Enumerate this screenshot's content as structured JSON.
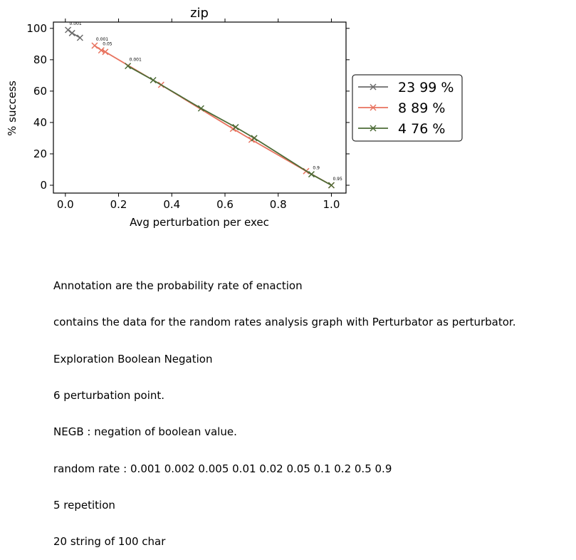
{
  "chart_data": {
    "type": "line",
    "title": "zip",
    "xlabel": "Avg perturbation per exec",
    "ylabel": "% success",
    "xlim": [
      -0.045,
      1.055
    ],
    "ylim": [
      -5,
      104
    ],
    "xticks": [
      0.0,
      0.2,
      0.4,
      0.6,
      0.8,
      1.0
    ],
    "xtick_labels": [
      "0.0",
      "0.2",
      "0.4",
      "0.6",
      "0.8",
      "1.0"
    ],
    "yticks": [
      0,
      20,
      40,
      60,
      80,
      100
    ],
    "ytick_labels": [
      "0",
      "20",
      "40",
      "60",
      "80",
      "100"
    ],
    "legend_position": "outside-right",
    "marker": "x",
    "series": [
      {
        "name": "23 99 %",
        "color": "#6b6b6b",
        "x": [
          0.01,
          0.025,
          0.055
        ],
        "y": [
          99,
          97,
          94
        ]
      },
      {
        "name": "8 89 %",
        "color": "#e8735f",
        "x": [
          0.11,
          0.135,
          0.15,
          0.36,
          0.63,
          0.7,
          0.905,
          1.0
        ],
        "y": [
          89,
          86,
          85,
          64,
          36,
          29,
          9,
          0
        ]
      },
      {
        "name": "4 76 %",
        "color": "#4d6b36",
        "x": [
          0.235,
          0.33,
          0.51,
          0.64,
          0.71,
          0.925,
          1.0
        ],
        "y": [
          76,
          67,
          49,
          37,
          30,
          7,
          0
        ]
      }
    ],
    "annotations": [
      {
        "text": "0.001",
        "x": 0.01,
        "y": 99
      },
      {
        "text": "0.001",
        "x": 0.11,
        "y": 89
      },
      {
        "text": "0.05",
        "x": 0.135,
        "y": 86
      },
      {
        "text": "0.001",
        "x": 0.235,
        "y": 76
      },
      {
        "text": "0.9",
        "x": 0.925,
        "y": 7
      },
      {
        "text": "0.95",
        "x": 1.0,
        "y": 0
      }
    ]
  },
  "caption_lines": [
    "Annotation are the probability rate of enaction",
    "contains the data for the random rates analysis graph with Perturbator as perturbator.",
    "Exploration Boolean Negation",
    "6 perturbation point.",
    "NEGB : negation of boolean value.",
    "random rate : 0.001 0.002 0.005 0.01 0.02 0.05 0.1 0.2 0.5 0.9",
    "5 repetition",
    "20 string of 100 char"
  ]
}
